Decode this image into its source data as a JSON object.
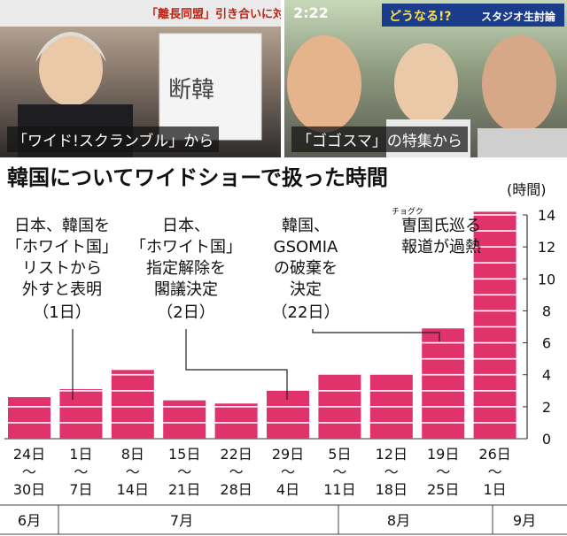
{
  "photos": {
    "left_caption": "「ワイド!スクランブル」から",
    "right_caption": "「ゴゴスマ」の特集から",
    "left_banner": "「離長同盟」引き合いに対話を",
    "right_time": "2:22",
    "right_banner": "どうなる!?",
    "right_tag": "スタジオ生討論",
    "whiteboard_text": "断韓"
  },
  "colors": {
    "bar": "#e0336b",
    "axis": "#333333"
  },
  "chart_data": {
    "type": "bar",
    "title": "韓国についてワイドショーで扱った時間",
    "ylabel": "(時間)",
    "ylim": [
      0,
      14
    ],
    "yticks": [
      "0",
      "2",
      "4",
      "6",
      "8",
      "10",
      "12",
      "14"
    ],
    "categories": [
      {
        "top": "24日",
        "bottom": "30日"
      },
      {
        "top": "1日",
        "bottom": "7日"
      },
      {
        "top": "8日",
        "bottom": "14日"
      },
      {
        "top": "15日",
        "bottom": "21日"
      },
      {
        "top": "22日",
        "bottom": "28日"
      },
      {
        "top": "29日",
        "bottom": "4日"
      },
      {
        "top": "5日",
        "bottom": "11日"
      },
      {
        "top": "12日",
        "bottom": "18日"
      },
      {
        "top": "19日",
        "bottom": "25日"
      },
      {
        "top": "26日",
        "bottom": "1日"
      }
    ],
    "range_sep": "〜",
    "values": [
      2.6,
      3.1,
      4.3,
      2.4,
      2.2,
      3.0,
      4.0,
      4.0,
      6.9,
      14.2
    ],
    "months": [
      "6月",
      "7月",
      "8月",
      "9月"
    ],
    "annotations": [
      {
        "lines": [
          "日本、韓国を",
          "「ホワイト国」",
          "リストから",
          "外すと表明",
          "（1日）"
        ]
      },
      {
        "lines": [
          "日本、",
          "「ホワイト国」",
          "指定解除を",
          "閣議決定",
          "（2日）"
        ]
      },
      {
        "lines": [
          "韓国、",
          "GSOMIA",
          "の破棄を",
          "決定",
          "（22日）"
        ]
      },
      {
        "lines": [
          "曺国氏巡る",
          "報道が過熱"
        ],
        "ruby": "チョグク"
      }
    ]
  }
}
